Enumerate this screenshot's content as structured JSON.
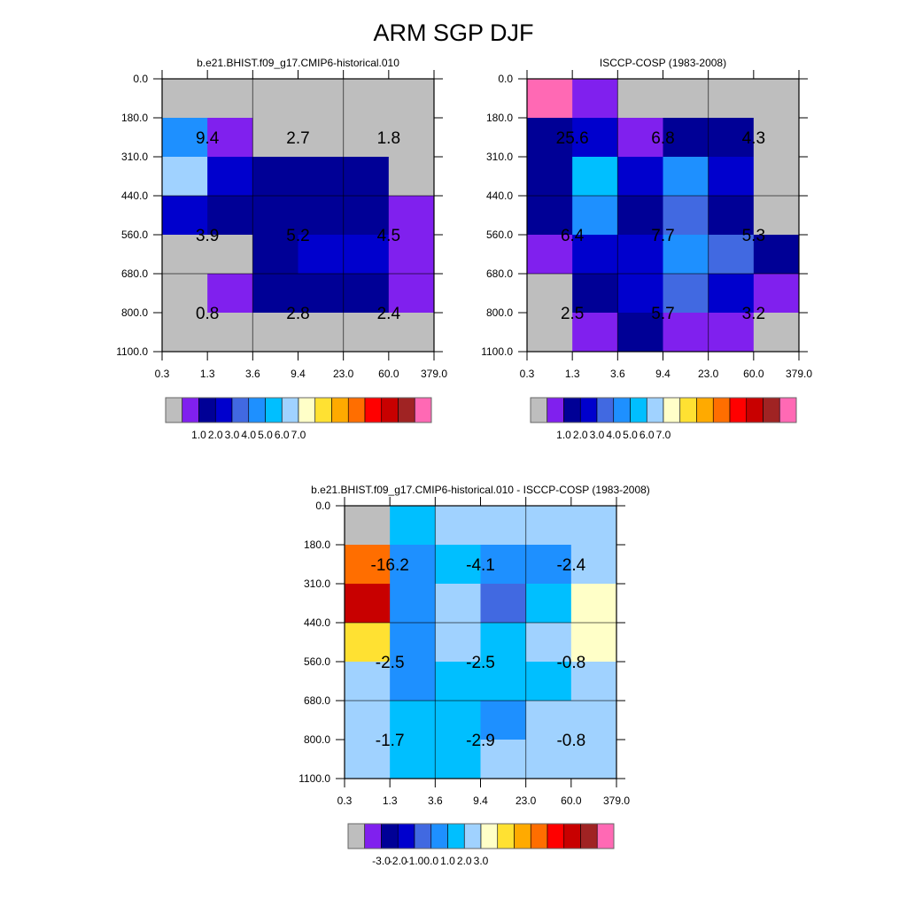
{
  "title": "ARM SGP DJF",
  "palette": [
    "#BEBEBE",
    "#8020EE",
    "#000096",
    "#0000CD",
    "#4169E1",
    "#1E90FF",
    "#00BFFF",
    "#A0D2FF",
    "#FFFFC8",
    "#FFE132",
    "#FFAA00",
    "#FF6E00",
    "#FF0000",
    "#C80000",
    "#A02323",
    "#FF69B4"
  ],
  "chart_data": [
    {
      "type": "heatmap",
      "title": "b.e21.BHIST.f09_g17.CMIP6-historical.010",
      "x_ticks": [
        "0.3",
        "1.3",
        "3.6",
        "9.4",
        "23.0",
        "60.0",
        "379.0"
      ],
      "y_ticks": [
        "0.0",
        "180.0",
        "310.0",
        "440.0",
        "560.0",
        "680.0",
        "800.0",
        "1100.0"
      ],
      "level_index": [
        [
          0,
          0,
          0,
          0,
          0,
          0
        ],
        [
          5,
          1,
          0,
          0,
          0,
          0
        ],
        [
          7,
          3,
          2,
          2,
          2,
          0
        ],
        [
          3,
          2,
          2,
          2,
          2,
          1
        ],
        [
          0,
          0,
          2,
          3,
          3,
          1
        ],
        [
          0,
          1,
          2,
          2,
          2,
          1
        ],
        [
          0,
          0,
          0,
          0,
          0,
          0
        ]
      ],
      "annotations": [
        [
          "9.4",
          "2.7",
          "1.8"
        ],
        [
          "3.9",
          "5.2",
          "4.5"
        ],
        [
          "0.8",
          "2.8",
          "2.4"
        ]
      ],
      "colorbar_labels": [
        "1.0",
        "2.0",
        "3.0",
        "4.0",
        "5.0",
        "6.0",
        "7.0"
      ]
    },
    {
      "type": "heatmap",
      "title": "ISCCP-COSP (1983-2008)",
      "x_ticks": [
        "0.3",
        "1.3",
        "3.6",
        "9.4",
        "23.0",
        "60.0",
        "379.0"
      ],
      "y_ticks": [
        "0.0",
        "180.0",
        "310.0",
        "440.0",
        "560.0",
        "680.0",
        "800.0",
        "1100.0"
      ],
      "level_index": [
        [
          15,
          1,
          0,
          0,
          0,
          0
        ],
        [
          2,
          3,
          1,
          2,
          2,
          0
        ],
        [
          2,
          6,
          3,
          5,
          3,
          0
        ],
        [
          2,
          5,
          2,
          4,
          2,
          0
        ],
        [
          1,
          3,
          3,
          5,
          4,
          2
        ],
        [
          0,
          2,
          3,
          4,
          3,
          1
        ],
        [
          0,
          1,
          2,
          1,
          1,
          0
        ]
      ],
      "annotations": [
        [
          "25.6",
          "6.8",
          "4.3"
        ],
        [
          "6.4",
          "7.7",
          "5.3"
        ],
        [
          "2.5",
          "5.7",
          "3.2"
        ]
      ],
      "colorbar_labels": [
        "1.0",
        "2.0",
        "3.0",
        "4.0",
        "5.0",
        "6.0",
        "7.0"
      ]
    },
    {
      "type": "heatmap",
      "title": "b.e21.BHIST.f09_g17.CMIP6-historical.010 - ISCCP-COSP (1983-2008)",
      "x_ticks": [
        "0.3",
        "1.3",
        "3.6",
        "9.4",
        "23.0",
        "60.0",
        "379.0"
      ],
      "y_ticks": [
        "0.0",
        "180.0",
        "310.0",
        "440.0",
        "560.0",
        "680.0",
        "800.0",
        "1100.0"
      ],
      "level_index": [
        [
          0,
          6,
          7,
          7,
          7,
          7
        ],
        [
          11,
          5,
          6,
          5,
          5,
          7
        ],
        [
          13,
          5,
          7,
          4,
          6,
          8
        ],
        [
          9,
          5,
          7,
          6,
          7,
          8
        ],
        [
          7,
          5,
          6,
          6,
          6,
          7
        ],
        [
          7,
          6,
          6,
          5,
          7,
          7
        ],
        [
          7,
          6,
          6,
          7,
          7,
          7
        ]
      ],
      "annotations": [
        [
          "-16.2",
          "-4.1",
          "-2.4"
        ],
        [
          "-2.5",
          "-2.5",
          "-0.8"
        ],
        [
          "-1.7",
          "-2.9",
          "-0.8"
        ]
      ],
      "colorbar_labels": [
        "-3.0",
        "-2.0",
        "-1.0",
        "0.0",
        "1.0",
        "2.0",
        "3.0"
      ]
    }
  ]
}
